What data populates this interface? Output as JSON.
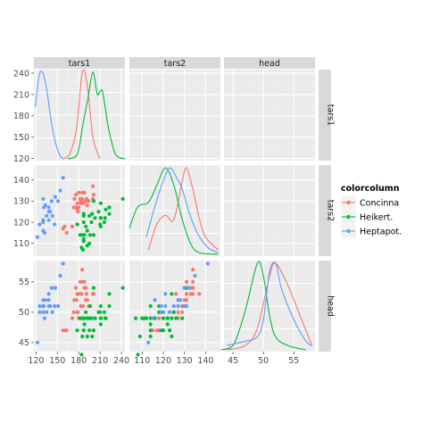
{
  "chart_data": {
    "type": "scatter",
    "variables": [
      "tars1",
      "tars2",
      "head"
    ],
    "limits": {
      "tars1": [
        117,
        245
      ],
      "tars2": [
        104,
        147
      ],
      "head": [
        43.5,
        58.5
      ]
    },
    "ticks": {
      "tars1": [
        120,
        150,
        180,
        210,
        240
      ],
      "tars2": [
        110,
        120,
        130,
        140
      ],
      "head": [
        45,
        50,
        55
      ]
    },
    "legend": {
      "title": "colorcolumn",
      "position": "right",
      "labels": [
        "Concinna",
        "Heikert.",
        "Heptapot."
      ]
    },
    "grid": true,
    "colors": {
      "Concinna": "#F8766D",
      "Heikert.": "#00BA38",
      "Heptapot.": "#619CFF",
      "panel": "#EBEBEB",
      "strip": "#D9D9D9"
    },
    "series": [
      {
        "name": "Concinna",
        "color": "#F8766D",
        "points": [
          [
            191,
            131,
            53
          ],
          [
            185,
            134,
            57
          ],
          [
            200,
            137,
            53
          ],
          [
            173,
            127,
            50
          ],
          [
            171,
            118,
            49
          ],
          [
            160,
            118,
            47
          ],
          [
            188,
            134,
            54
          ],
          [
            186,
            129,
            51
          ],
          [
            174,
            131,
            52
          ],
          [
            163,
            115,
            47
          ],
          [
            190,
            130,
            54
          ],
          [
            174,
            131,
            52
          ],
          [
            201,
            133,
            53
          ],
          [
            190,
            130,
            52
          ],
          [
            182,
            131,
            55
          ],
          [
            184,
            131,
            53
          ],
          [
            177,
            127,
            52
          ],
          [
            178,
            126,
            53
          ],
          [
            180,
            134,
            53
          ],
          [
            185,
            131,
            55
          ],
          [
            176,
            133,
            54
          ],
          [
            200,
            131,
            53
          ],
          [
            192,
            128,
            52
          ],
          [
            183,
            130,
            51
          ],
          [
            188,
            134,
            55
          ],
          [
            183,
            129,
            51
          ],
          [
            179,
            125,
            50
          ],
          [
            180,
            127,
            49
          ],
          [
            178,
            129,
            50
          ],
          [
            194,
            130,
            51
          ],
          [
            158,
            117,
            47
          ]
        ],
        "density": {
          "tars1": [
            [
              157,
              0.0
            ],
            [
              167,
              0.05
            ],
            [
              177,
              0.35
            ],
            [
              185,
              1.0
            ],
            [
              192,
              0.85
            ],
            [
              200,
              0.25
            ],
            [
              210,
              0.0
            ]
          ],
          "tars2": [
            [
              113,
              0.05
            ],
            [
              117,
              0.35
            ],
            [
              121,
              0.45
            ],
            [
              125,
              0.4
            ],
            [
              129,
              0.85
            ],
            [
              131,
              1.0
            ],
            [
              134,
              0.75
            ],
            [
              139,
              0.25
            ],
            [
              146,
              0.05
            ]
          ],
          "head": [
            [
              44,
              0.0
            ],
            [
              47,
              0.05
            ],
            [
              49,
              0.25
            ],
            [
              51,
              0.85
            ],
            [
              52,
              1.0
            ],
            [
              54,
              0.75
            ],
            [
              56,
              0.4
            ],
            [
              58,
              0.05
            ]
          ]
        }
      },
      {
        "name": "Heikert.",
        "color": "#00BA38",
        "points": [
          [
            186,
            107,
            49
          ],
          [
            211,
            122,
            49
          ],
          [
            201,
            114,
            47
          ],
          [
            242,
            131,
            54
          ],
          [
            184,
            108,
            43
          ],
          [
            211,
            118,
            51
          ],
          [
            217,
            122,
            49
          ],
          [
            223,
            127,
            51
          ],
          [
            208,
            125,
            50
          ],
          [
            199,
            124,
            46
          ],
          [
            211,
            129,
            49
          ],
          [
            218,
            126,
            49
          ],
          [
            203,
            122,
            49
          ],
          [
            192,
            116,
            49
          ],
          [
            195,
            123,
            47
          ],
          [
            211,
            122,
            48
          ],
          [
            187,
            123,
            47
          ],
          [
            192,
            109,
            46
          ],
          [
            223,
            124,
            53
          ],
          [
            188,
            114,
            48
          ],
          [
            216,
            120,
            50
          ],
          [
            185,
            114,
            46
          ],
          [
            178,
            119,
            47
          ],
          [
            187,
            111,
            49
          ],
          [
            187,
            112,
            49
          ],
          [
            201,
            130,
            54
          ],
          [
            187,
            120,
            47
          ],
          [
            210,
            119,
            50
          ],
          [
            196,
            114,
            51
          ],
          [
            195,
            110,
            49
          ],
          [
            187,
            124,
            49
          ],
          [
            182,
            114,
            49
          ],
          [
            190,
            118,
            50
          ],
          [
            198,
            120,
            49
          ]
        ],
        "density": {
          "tars1": [
            [
              165,
              0.0
            ],
            [
              178,
              0.05
            ],
            [
              186,
              0.4
            ],
            [
              193,
              0.7
            ],
            [
              200,
              1.0
            ],
            [
              206,
              0.75
            ],
            [
              210,
              0.78
            ],
            [
              214,
              0.76
            ],
            [
              222,
              0.35
            ],
            [
              232,
              0.05
            ],
            [
              245,
              0.0
            ]
          ],
          "tars2": [
            [
              104,
              0.3
            ],
            [
              108,
              0.55
            ],
            [
              113,
              0.6
            ],
            [
              117,
              0.8
            ],
            [
              121,
              1.0
            ],
            [
              125,
              0.8
            ],
            [
              129,
              0.4
            ],
            [
              133,
              0.12
            ],
            [
              137,
              0.02
            ],
            [
              146,
              0.0
            ]
          ],
          "head": [
            [
              43,
              0.0
            ],
            [
              45,
              0.05
            ],
            [
              47,
              0.45
            ],
            [
              49,
              1.0
            ],
            [
              50,
              0.85
            ],
            [
              51,
              0.4
            ],
            [
              52,
              0.15
            ],
            [
              54,
              0.05
            ],
            [
              57,
              0.0
            ]
          ]
        }
      },
      {
        "name": "Heptapot.",
        "color": "#619CFF",
        "points": [
          [
            158,
            141,
            58
          ],
          [
            146,
            119,
            51
          ],
          [
            151,
            130,
            51
          ],
          [
            122,
            113,
            45
          ],
          [
            138,
            121,
            53
          ],
          [
            132,
            115,
            49
          ],
          [
            131,
            127,
            51
          ],
          [
            135,
            123,
            50
          ],
          [
            125,
            119,
            51
          ],
          [
            130,
            120,
            50
          ],
          [
            130,
            131,
            51
          ],
          [
            138,
            127,
            52
          ],
          [
            130,
            116,
            52
          ],
          [
            143,
            123,
            50
          ],
          [
            154,
            135,
            56
          ],
          [
            147,
            132,
            54
          ],
          [
            125,
            119,
            50
          ],
          [
            138,
            125,
            51
          ],
          [
            130,
            121,
            51
          ],
          [
            133,
            128,
            52
          ],
          [
            142,
            130,
            54
          ],
          [
            140,
            125,
            51
          ]
        ],
        "density": {
          "tars1": [
            [
              119,
              0.6
            ],
            [
              124,
              0.95
            ],
            [
              129,
              1.0
            ],
            [
              135,
              0.8
            ],
            [
              141,
              0.45
            ],
            [
              147,
              0.2
            ],
            [
              153,
              0.05
            ],
            [
              158,
              0.0
            ]
          ],
          "tars2": [
            [
              112,
              0.2
            ],
            [
              116,
              0.55
            ],
            [
              120,
              0.85
            ],
            [
              123,
              1.0
            ],
            [
              126,
              0.9
            ],
            [
              129,
              0.75
            ],
            [
              132,
              0.5
            ],
            [
              136,
              0.25
            ],
            [
              141,
              0.08
            ],
            [
              146,
              0.02
            ]
          ],
          "head": [
            [
              44,
              0.05
            ],
            [
              47,
              0.1
            ],
            [
              49,
              0.15
            ],
            [
              50,
              0.35
            ],
            [
              51,
              0.9
            ],
            [
              52,
              1.0
            ],
            [
              53,
              0.7
            ],
            [
              55,
              0.35
            ],
            [
              57,
              0.1
            ],
            [
              58,
              0.05
            ]
          ]
        }
      }
    ]
  }
}
